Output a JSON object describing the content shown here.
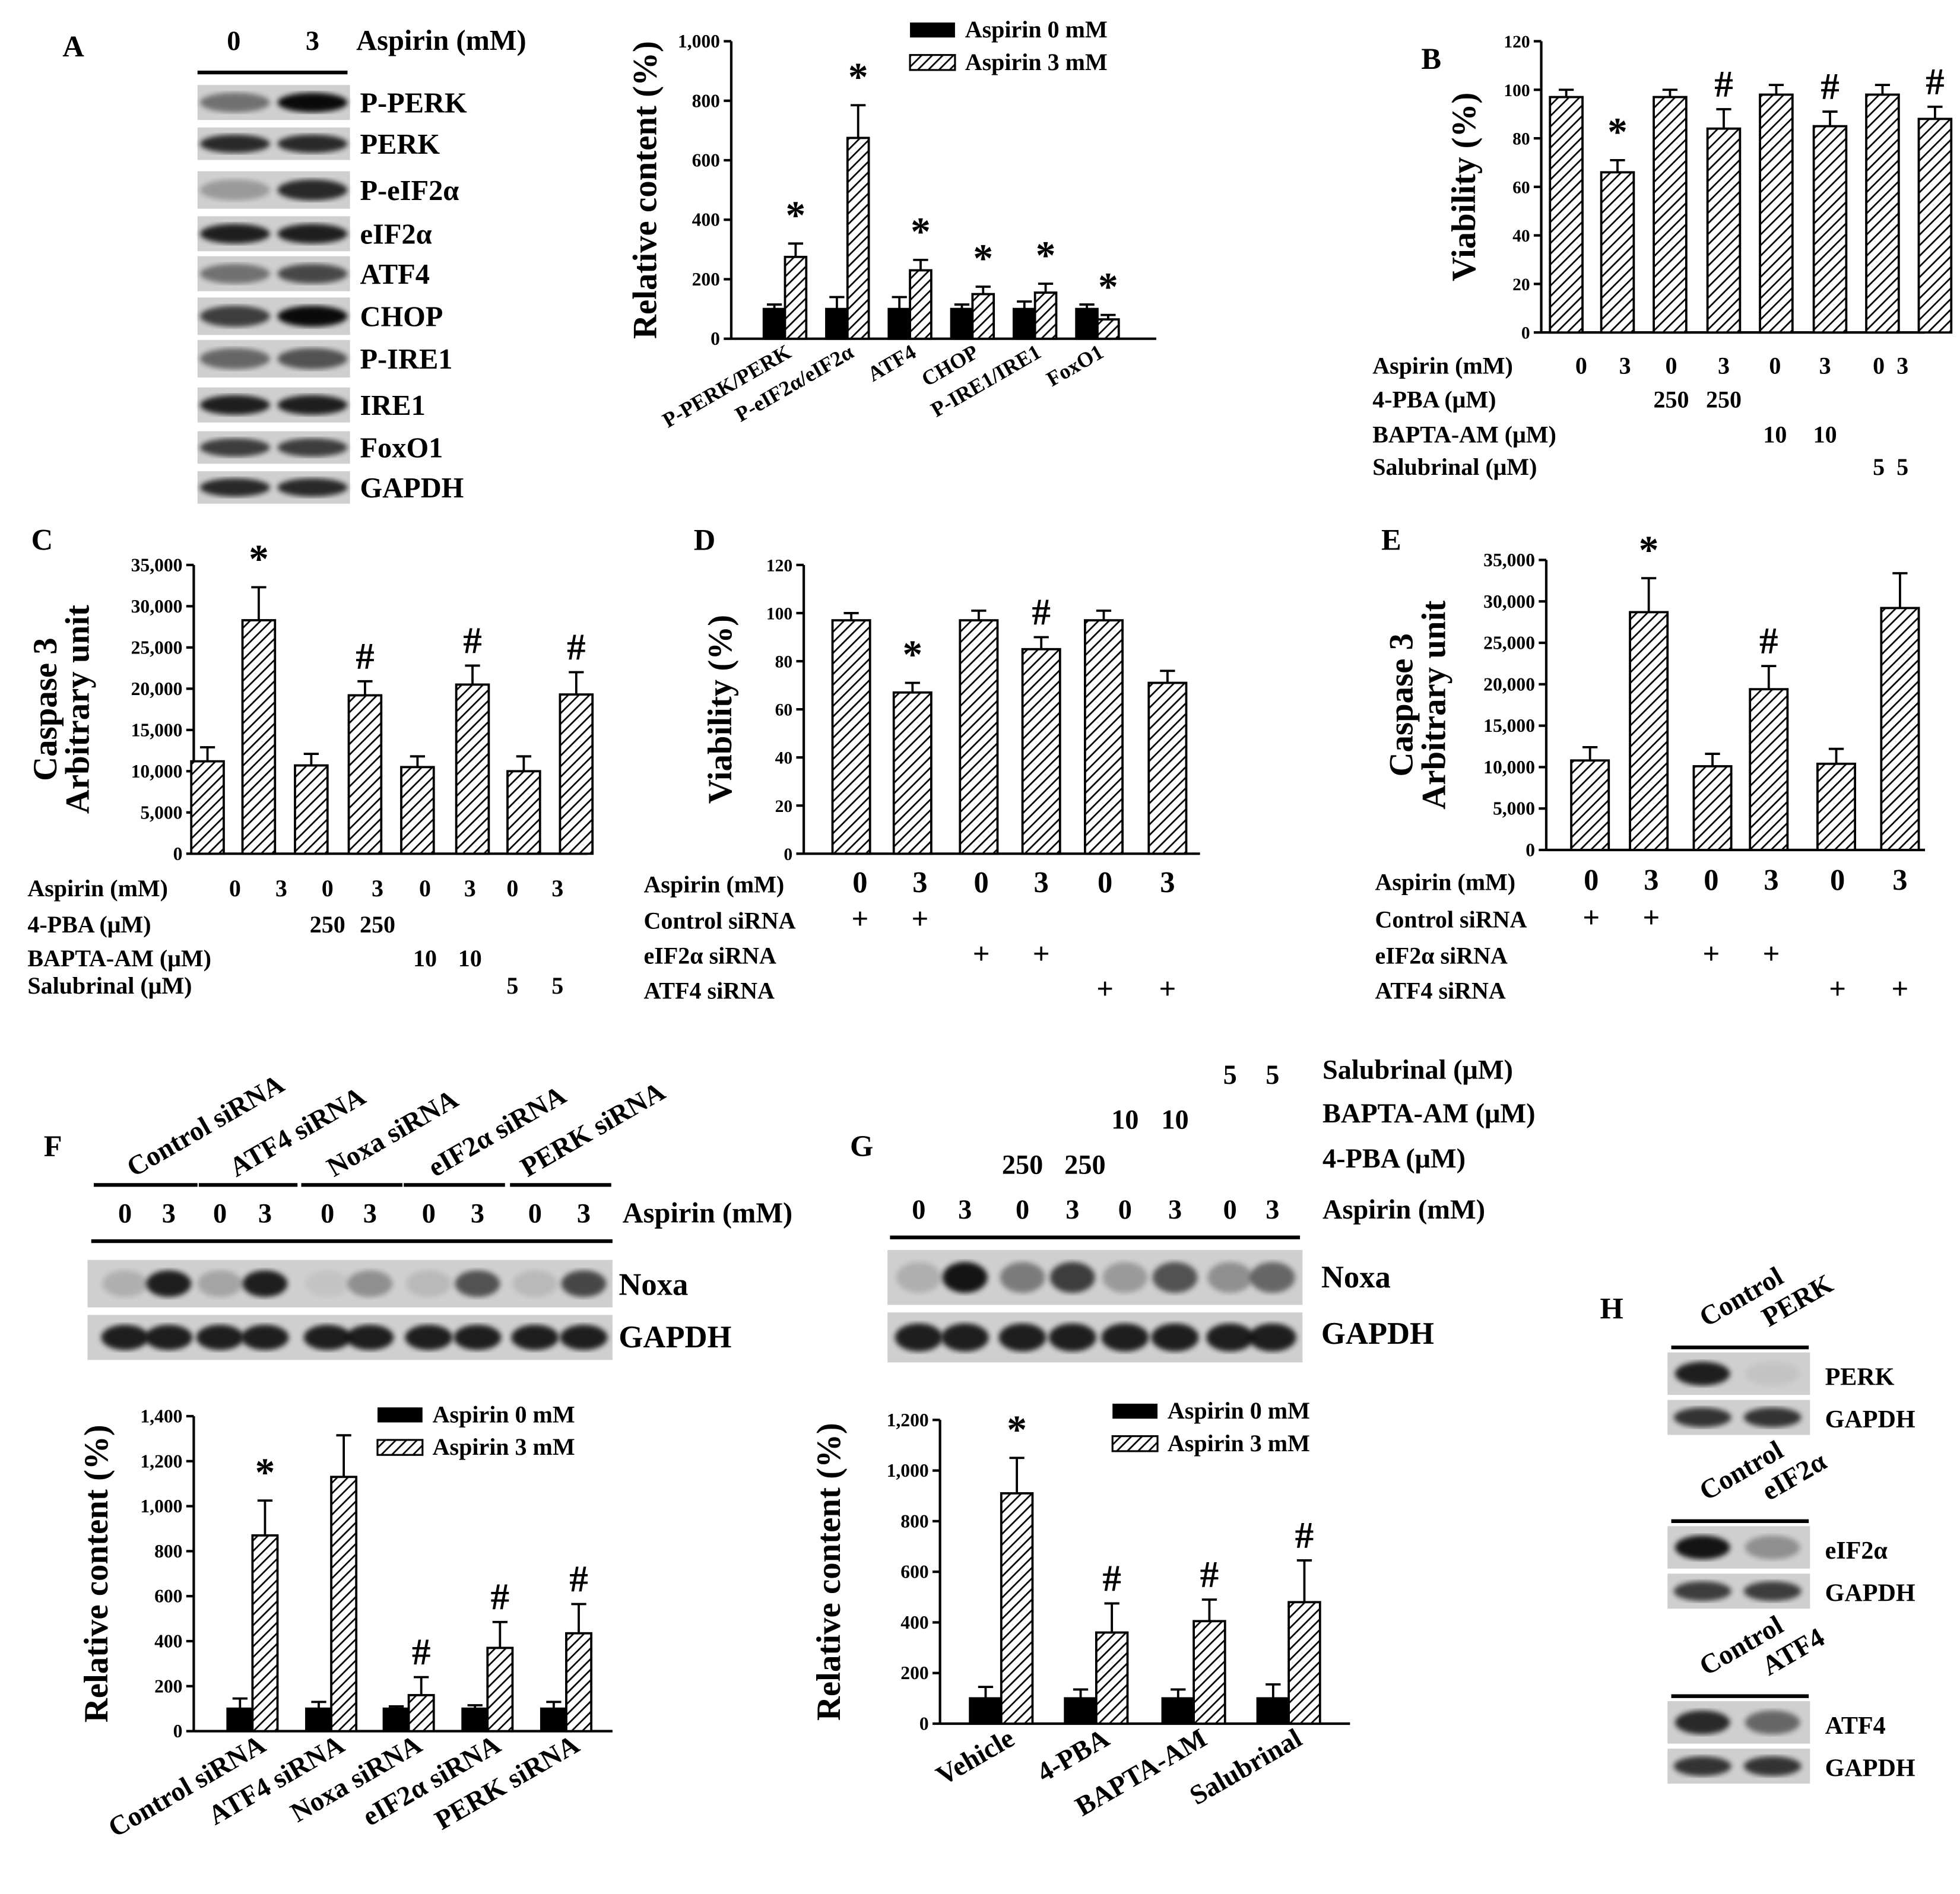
{
  "panel_letters": [
    "A",
    "B",
    "C",
    "D",
    "E",
    "F",
    "G",
    "H"
  ],
  "blot_a": {
    "aspirin_header": "Aspirin (mM)",
    "lanes": [
      "0",
      "3"
    ],
    "bands": [
      "P-PERK",
      "PERK",
      "P-eIF2α",
      "eIF2α",
      "ATF4",
      "CHOP",
      "P-IRE1",
      "IRE1",
      "FoxO1",
      "GAPDH"
    ]
  },
  "blot_f": {
    "groups": [
      "Control siRNA",
      "ATF4 siRNA",
      "Noxa siRNA",
      "eIF2α siRNA",
      "PERK siRNA"
    ],
    "lanes": [
      "0",
      "3",
      "0",
      "3",
      "0",
      "3",
      "0",
      "3",
      "0",
      "3"
    ],
    "aspirin_label": "Aspirin (mM)",
    "bands": [
      "Noxa",
      "GAPDH"
    ]
  },
  "blot_g": {
    "labels": [
      "Salubrinal (μM)",
      "BAPTA-AM (μM)",
      "4-PBA (μM)",
      "Aspirin (mM)"
    ],
    "salubrinal": [
      "5",
      "5"
    ],
    "bapta": [
      "10",
      "10"
    ],
    "pba": [
      "250",
      "250"
    ],
    "lanes": [
      "0",
      "3",
      "0",
      "3",
      "0",
      "3",
      "0",
      "3"
    ],
    "bands": [
      "Noxa",
      "GAPDH"
    ]
  },
  "blot_h": [
    {
      "lanes": [
        "Control",
        "PERK"
      ],
      "bands": [
        "PERK",
        "GAPDH"
      ]
    },
    {
      "lanes": [
        "Control",
        "eIF2α"
      ],
      "bands": [
        "eIF2α",
        "GAPDH"
      ]
    },
    {
      "lanes": [
        "Control",
        "ATF4"
      ],
      "bands": [
        "ATF4",
        "GAPDH"
      ]
    }
  ],
  "tables": {
    "b": {
      "rows": [
        {
          "label": "Aspirin (mM)",
          "values": [
            "0",
            "3",
            "0",
            "3",
            "0",
            "3",
            "0",
            "3"
          ]
        },
        {
          "label": "4-PBA (μM)",
          "values": [
            "",
            "",
            "250",
            "250",
            "",
            "",
            "",
            ""
          ]
        },
        {
          "label": "BAPTA-AM (μM)",
          "values": [
            "",
            "",
            "",
            "",
            "10",
            "10",
            "",
            ""
          ]
        },
        {
          "label": "Salubrinal (μM)",
          "values": [
            "",
            "",
            "",
            "",
            "",
            "",
            "5",
            "5"
          ]
        }
      ]
    },
    "c": {
      "rows": [
        {
          "label": "Aspirin (mM)",
          "values": [
            "0",
            "3",
            "0",
            "3",
            "0",
            "3",
            "0",
            "3"
          ]
        },
        {
          "label": "4-PBA (μM)",
          "values": [
            "",
            "",
            "250",
            "250",
            "",
            "",
            "",
            ""
          ]
        },
        {
          "label": "BAPTA-AM (μM)",
          "values": [
            "",
            "",
            "",
            "",
            "10",
            "10",
            "",
            ""
          ]
        },
        {
          "label": "Salubrinal (μM)",
          "values": [
            "",
            "",
            "",
            "",
            "",
            "",
            "5",
            "5"
          ]
        }
      ]
    },
    "d": {
      "rows": [
        {
          "label": "Aspirin (mM)",
          "values": [
            "0",
            "3",
            "0",
            "3",
            "0",
            "3"
          ]
        },
        {
          "label": "Control siRNA",
          "values": [
            "+",
            "+",
            "",
            "",
            "",
            ""
          ]
        },
        {
          "label": "eIF2α siRNA",
          "values": [
            "",
            "",
            "+",
            "+",
            "",
            ""
          ]
        },
        {
          "label": "ATF4 siRNA",
          "values": [
            "",
            "",
            "",
            "",
            "+",
            "+"
          ]
        }
      ]
    },
    "e": {
      "rows": [
        {
          "label": "Aspirin (mM)",
          "values": [
            "0",
            "3",
            "0",
            "3",
            "0",
            "3"
          ]
        },
        {
          "label": "Control siRNA",
          "values": [
            "+",
            "+",
            "",
            "",
            "",
            ""
          ]
        },
        {
          "label": "eIF2α siRNA",
          "values": [
            "",
            "",
            "+",
            "+",
            "",
            ""
          ]
        },
        {
          "label": "ATF4 siRNA",
          "values": [
            "",
            "",
            "",
            "",
            "+",
            "+"
          ]
        }
      ]
    }
  },
  "chart_data": [
    {
      "id": "A",
      "type": "bar",
      "ylabel": "Relative content (%)",
      "ylim": [
        0,
        1000
      ],
      "yticks": [
        "0",
        "200",
        "400",
        "600",
        "800",
        "1,000"
      ],
      "categories": [
        "P-PERK/PERK",
        "P-eIF2α/eIF2α",
        "ATF4",
        "CHOP",
        "P-IRE1/IRE1",
        "FoxO1"
      ],
      "series": [
        {
          "name": "Aspirin 0 mM",
          "values": [
            100,
            100,
            100,
            100,
            100,
            100
          ],
          "errors": [
            15,
            40,
            40,
            15,
            25,
            15
          ]
        },
        {
          "name": "Aspirin 3 mM",
          "values": [
            275,
            675,
            230,
            150,
            155,
            65
          ],
          "errors": [
            45,
            110,
            35,
            25,
            30,
            15
          ],
          "marks": [
            "*",
            "*",
            "*",
            "*",
            "*",
            "*"
          ]
        }
      ]
    },
    {
      "id": "B",
      "type": "bar",
      "ylabel": "Viability (%)",
      "ylim": [
        0,
        120
      ],
      "yticks": [
        "0",
        "20",
        "40",
        "60",
        "80",
        "100",
        "120"
      ],
      "series": [
        {
          "name": "Viability",
          "values": [
            97,
            66,
            97,
            84,
            98,
            85,
            98,
            88
          ],
          "errors": [
            3,
            5,
            3,
            8,
            4,
            6,
            4,
            5
          ],
          "marks": [
            "",
            "*",
            "",
            "#",
            "",
            "#",
            "",
            "#"
          ]
        }
      ]
    },
    {
      "id": "C",
      "type": "bar",
      "ylabel": "Caspase 3",
      "ylabel2": "Arbitrary unit",
      "ylim": [
        0,
        35000
      ],
      "yticks": [
        "0",
        "5,000",
        "10,000",
        "15,000",
        "20,000",
        "25,000",
        "30,000",
        "35,000"
      ],
      "series": [
        {
          "name": "Caspase 3",
          "values": [
            11200,
            28300,
            10700,
            19200,
            10500,
            20500,
            10000,
            19300
          ],
          "errors": [
            1700,
            4000,
            1400,
            1700,
            1300,
            2300,
            1800,
            2700
          ],
          "marks": [
            "",
            "*",
            "",
            "#",
            "",
            "#",
            "",
            "#"
          ]
        }
      ]
    },
    {
      "id": "D",
      "type": "bar",
      "ylabel": "Viability (%)",
      "ylim": [
        0,
        120
      ],
      "yticks": [
        "0",
        "20",
        "40",
        "60",
        "80",
        "100",
        "120"
      ],
      "series": [
        {
          "name": "Viability",
          "values": [
            97,
            67,
            97,
            85,
            97,
            71
          ],
          "errors": [
            3,
            4,
            4,
            5,
            4,
            5
          ],
          "marks": [
            "",
            "*",
            "",
            "#",
            "",
            ""
          ]
        }
      ]
    },
    {
      "id": "E",
      "type": "bar",
      "ylabel": "Caspase 3",
      "ylabel2": "Arbitrary unit",
      "ylim": [
        0,
        35000
      ],
      "yticks": [
        "0",
        "5,000",
        "10,000",
        "15,000",
        "20,000",
        "25,000",
        "30,000",
        "35,000"
      ],
      "series": [
        {
          "name": "Caspase 3",
          "values": [
            10800,
            28700,
            10100,
            19400,
            10400,
            29200
          ],
          "errors": [
            1600,
            4100,
            1500,
            2800,
            1800,
            4200
          ],
          "marks": [
            "",
            "*",
            "",
            "#",
            "",
            ""
          ]
        }
      ]
    },
    {
      "id": "F",
      "type": "bar",
      "ylabel": "Relative content (%)",
      "ylim": [
        0,
        1400
      ],
      "yticks": [
        "0",
        "200",
        "400",
        "600",
        "800",
        "1,000",
        "1,200",
        "1,400"
      ],
      "categories": [
        "Control siRNA",
        "ATF4 siRNA",
        "Noxa siRNA",
        "eIF2α siRNA",
        "PERK siRNA"
      ],
      "series": [
        {
          "name": "Aspirin 0 mM",
          "values": [
            100,
            100,
            100,
            100,
            100
          ],
          "errors": [
            45,
            30,
            10,
            15,
            30
          ]
        },
        {
          "name": "Aspirin 3 mM",
          "values": [
            870,
            1130,
            160,
            370,
            435
          ],
          "errors": [
            155,
            185,
            80,
            115,
            130
          ],
          "marks": [
            "*",
            "",
            "#",
            "#",
            "#"
          ]
        }
      ]
    },
    {
      "id": "G",
      "type": "bar",
      "ylabel": "Relative content (%)",
      "ylim": [
        0,
        1200
      ],
      "yticks": [
        "0",
        "200",
        "400",
        "600",
        "800",
        "1,000",
        "1,200"
      ],
      "categories": [
        "Vehicle",
        "4-PBA",
        "BAPTA-AM",
        "Salubrinal"
      ],
      "series": [
        {
          "name": "Aspirin 0 mM",
          "values": [
            100,
            100,
            100,
            100
          ],
          "errors": [
            45,
            35,
            35,
            55
          ]
        },
        {
          "name": "Aspirin 3 mM",
          "values": [
            910,
            360,
            405,
            480
          ],
          "errors": [
            140,
            115,
            85,
            165
          ],
          "marks": [
            "*",
            "#",
            "#",
            "#"
          ]
        }
      ]
    }
  ]
}
